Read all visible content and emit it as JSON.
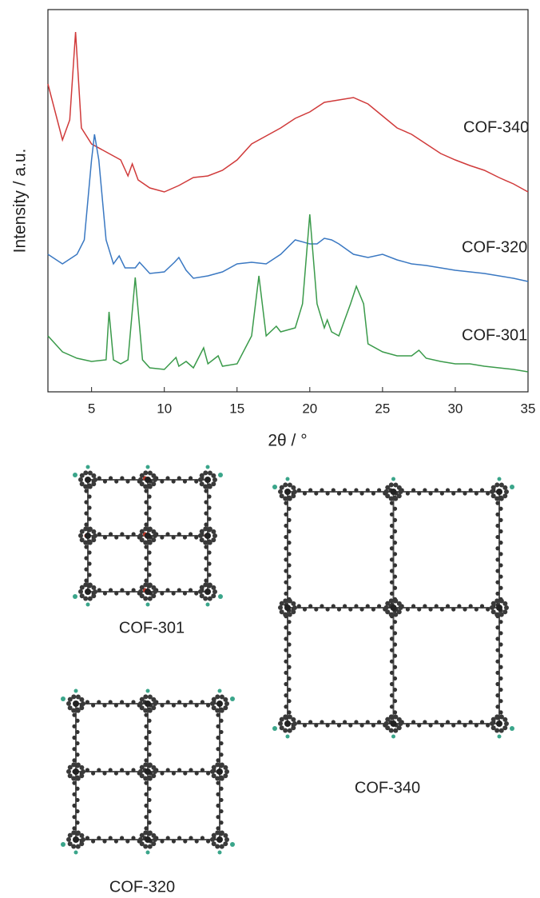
{
  "chart_data": {
    "type": "line",
    "x_label": "2θ / °",
    "y_label": "Intensity / a.u.",
    "xlim": [
      2,
      35
    ],
    "xticks": [
      5,
      10,
      15,
      20,
      25,
      30,
      35
    ],
    "ylim": [
      0,
      478
    ],
    "series": [
      {
        "name": "COF-340",
        "color": "#d03a3a",
        "x": [
          2,
          3,
          3.5,
          3.9,
          4.3,
          5,
          6,
          7,
          7.5,
          7.8,
          8.2,
          9,
          10,
          11,
          12,
          13,
          14,
          15,
          16,
          17,
          18,
          19,
          20,
          21,
          22,
          23,
          24,
          25,
          26,
          27,
          28,
          29,
          30,
          31,
          32,
          33,
          34,
          35
        ],
        "values": [
          385,
          315,
          340,
          450,
          330,
          310,
          300,
          290,
          270,
          285,
          265,
          255,
          250,
          258,
          268,
          270,
          277,
          290,
          310,
          320,
          330,
          342,
          350,
          362,
          365,
          368,
          360,
          345,
          330,
          322,
          310,
          298,
          290,
          283,
          277,
          268,
          260,
          250
        ]
      },
      {
        "name": "COF-320",
        "color": "#3a78c2",
        "x": [
          2,
          3,
          4,
          4.5,
          5,
          5.2,
          5.5,
          6,
          6.5,
          6.9,
          7.3,
          8,
          8.3,
          9,
          10,
          10.7,
          11,
          11.5,
          12,
          13,
          14,
          15,
          16,
          17,
          18,
          19,
          20,
          20.5,
          21,
          21.5,
          22,
          23,
          24,
          25,
          26,
          27,
          28,
          29,
          30,
          31,
          32,
          33,
          34,
          35
        ],
        "values": [
          172,
          160,
          172,
          190,
          290,
          322,
          290,
          190,
          160,
          170,
          155,
          155,
          162,
          148,
          150,
          162,
          168,
          152,
          142,
          145,
          150,
          160,
          162,
          160,
          172,
          190,
          185,
          185,
          192,
          190,
          185,
          172,
          168,
          172,
          165,
          160,
          158,
          155,
          152,
          150,
          148,
          145,
          142,
          138
        ]
      },
      {
        "name": "COF-301",
        "color": "#3a9a4a",
        "x": [
          2,
          3,
          4,
          5,
          6,
          6.2,
          6.5,
          7,
          7.5,
          8,
          8.5,
          9,
          10,
          10.8,
          11,
          11.5,
          12,
          12.7,
          13,
          13.7,
          14,
          15,
          16,
          16.5,
          17,
          17.7,
          18,
          19,
          19.5,
          20,
          20.5,
          21,
          21.2,
          21.5,
          22,
          22.8,
          23.2,
          23.7,
          24,
          25,
          26,
          27,
          27.5,
          28,
          29,
          30,
          31,
          32,
          33,
          34,
          35
        ],
        "values": [
          70,
          50,
          42,
          38,
          40,
          100,
          40,
          35,
          40,
          143,
          40,
          30,
          28,
          43,
          32,
          38,
          30,
          55,
          35,
          45,
          32,
          35,
          70,
          145,
          70,
          82,
          75,
          80,
          110,
          222,
          110,
          80,
          90,
          75,
          70,
          110,
          132,
          110,
          60,
          50,
          45,
          45,
          52,
          42,
          38,
          35,
          35,
          32,
          30,
          28,
          25
        ]
      }
    ]
  },
  "structures": [
    {
      "label": "COF-301"
    },
    {
      "label": "COF-320"
    },
    {
      "label": "COF-340"
    }
  ]
}
